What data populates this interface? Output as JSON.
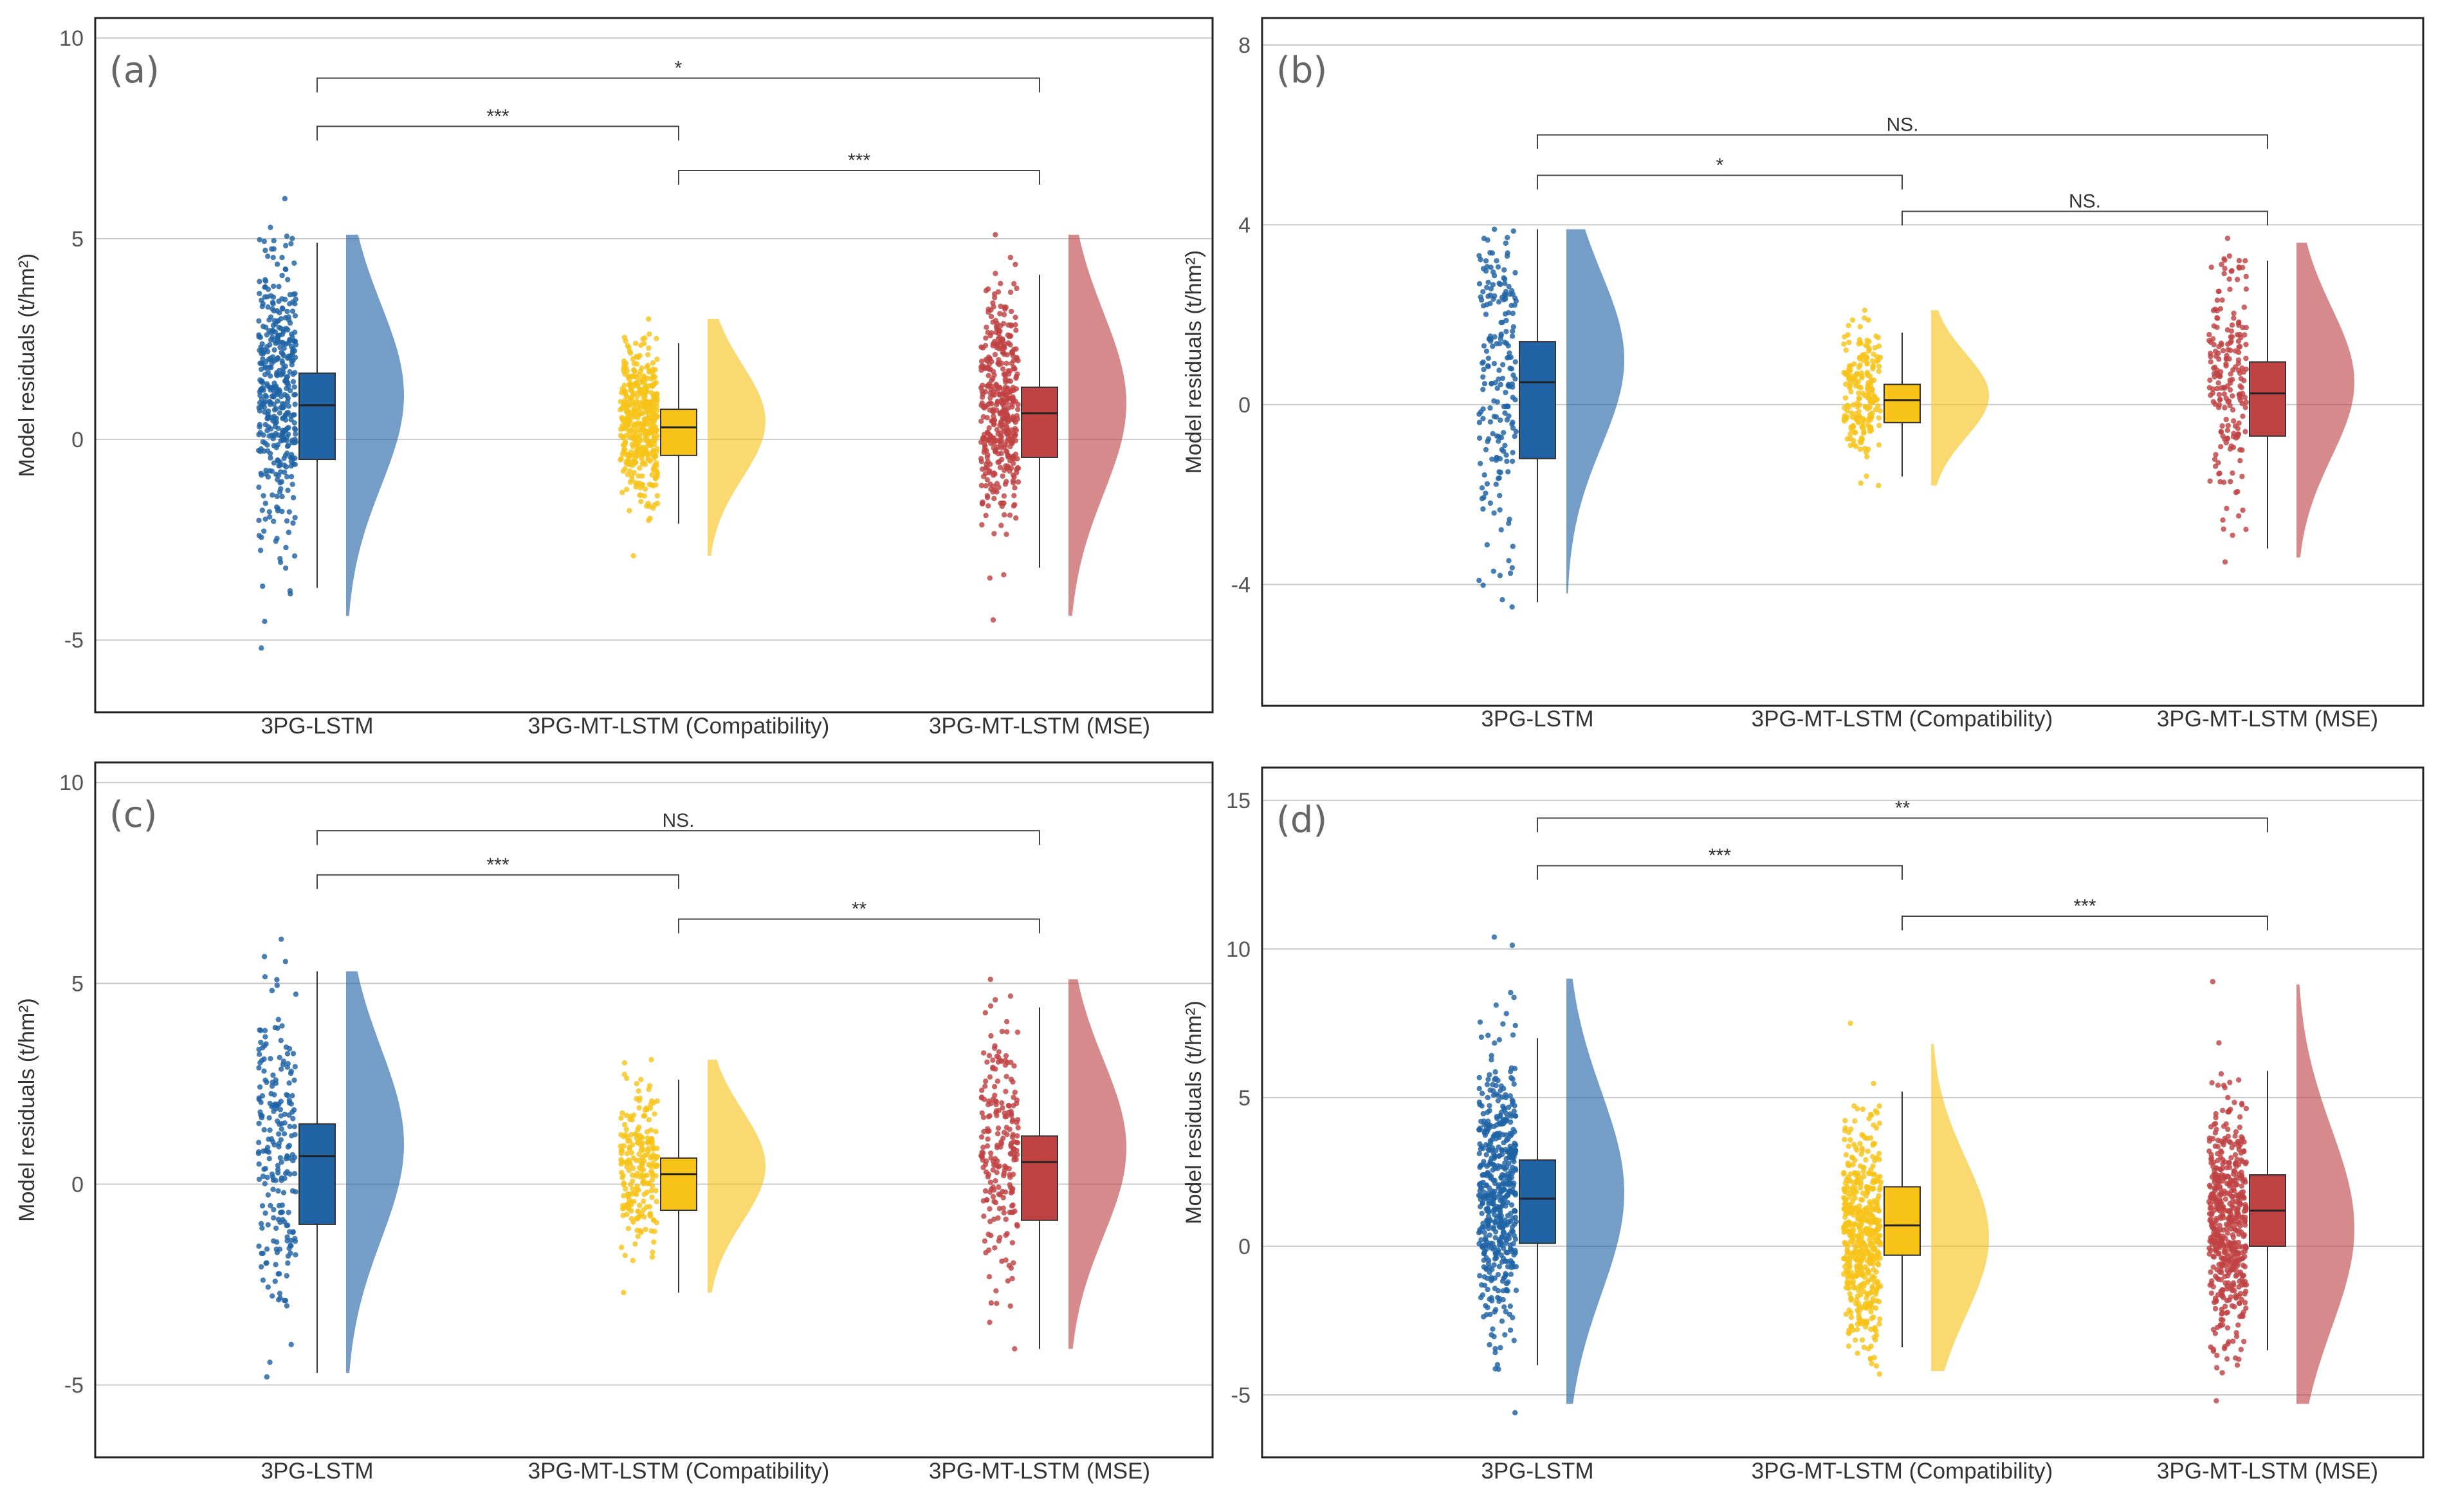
{
  "colors": {
    "3PG-LSTM": "#1f63a5",
    "3PG-MT-LSTM (Compatibility)": "#f7c319",
    "3PG-MT-LSTM (MSE)": "#bf4243"
  },
  "chart_data": [
    {
      "panel": "(a)",
      "type": "raincloud",
      "ylabel": "Model residuals (t/hm²)",
      "ylim": [
        -6.8,
        10.5
      ],
      "yticks": [
        -5,
        0,
        5,
        10
      ],
      "ytick_labels": [
        "-5",
        "0",
        "5",
        "10"
      ],
      "categories": [
        "3PG-LSTM",
        "3PG-MT-LSTM (Compatibility)",
        "3PG-MT-LSTM (MSE)"
      ],
      "series": [
        {
          "name": "3PG-LSTM",
          "q1": -0.5,
          "median": 0.85,
          "q3": 1.65,
          "whisker_low": -3.7,
          "whisker_high": 4.9,
          "min": -5.2,
          "max": 6.0,
          "density_min": -4.4,
          "density_max": 5.1,
          "mode": 1.1
        },
        {
          "name": "3PG-MT-LSTM (Compatibility)",
          "q1": -0.4,
          "median": 0.3,
          "q3": 0.75,
          "whisker_low": -2.1,
          "whisker_high": 2.4,
          "min": -2.9,
          "max": 3.0,
          "density_min": -2.9,
          "density_max": 3.0,
          "mode": 0.45
        },
        {
          "name": "3PG-MT-LSTM (MSE)",
          "q1": -0.45,
          "median": 0.65,
          "q3": 1.3,
          "whisker_low": -3.2,
          "whisker_high": 4.1,
          "min": -4.5,
          "max": 5.1,
          "density_min": -4.4,
          "density_max": 5.1,
          "mode": 0.9
        }
      ],
      "n_points": 420,
      "annotations": [
        {
          "from": 0,
          "to": 2,
          "y": 9.0,
          "label": "*"
        },
        {
          "from": 0,
          "to": 1,
          "y": 7.8,
          "label": "***"
        },
        {
          "from": 1,
          "to": 2,
          "y": 6.7,
          "label": "***"
        }
      ]
    },
    {
      "panel": "(b)",
      "type": "raincloud",
      "ylabel": "Model residuals (t/hm²)",
      "ylim": [
        -6.7,
        8.6
      ],
      "yticks": [
        -4,
        0,
        4,
        8
      ],
      "ytick_labels": [
        "-4",
        "0",
        "4",
        "8"
      ],
      "categories": [
        "3PG-LSTM",
        "3PG-MT-LSTM (Compatibility)",
        "3PG-MT-LSTM (MSE)"
      ],
      "series": [
        {
          "name": "3PG-LSTM",
          "q1": -1.2,
          "median": 0.5,
          "q3": 1.4,
          "whisker_low": -4.4,
          "whisker_high": 3.9,
          "min": -4.5,
          "max": 3.9,
          "density_min": -4.2,
          "density_max": 3.9,
          "mode": 1.0
        },
        {
          "name": "3PG-MT-LSTM (Compatibility)",
          "q1": -0.4,
          "median": 0.1,
          "q3": 0.45,
          "whisker_low": -1.6,
          "whisker_high": 1.6,
          "min": -1.8,
          "max": 2.1,
          "density_min": -1.8,
          "density_max": 2.1,
          "mode": 0.2
        },
        {
          "name": "3PG-MT-LSTM (MSE)",
          "q1": -0.7,
          "median": 0.25,
          "q3": 0.95,
          "whisker_low": -3.2,
          "whisker_high": 3.2,
          "min": -3.5,
          "max": 3.7,
          "density_min": -3.4,
          "density_max": 3.6,
          "mode": 0.5
        }
      ],
      "n_points": 200,
      "annotations": [
        {
          "from": 0,
          "to": 2,
          "y": 6.0,
          "label": "NS."
        },
        {
          "from": 0,
          "to": 1,
          "y": 5.1,
          "label": "*"
        },
        {
          "from": 1,
          "to": 2,
          "y": 4.3,
          "label": "NS."
        }
      ]
    },
    {
      "panel": "(c)",
      "type": "raincloud",
      "ylabel": "Model residuals (t/hm²)",
      "ylim": [
        -6.8,
        10.5
      ],
      "yticks": [
        -5,
        0,
        5,
        10
      ],
      "ytick_labels": [
        "-5",
        "0",
        "5",
        "10"
      ],
      "categories": [
        "3PG-LSTM",
        "3PG-MT-LSTM (Compatibility)",
        "3PG-MT-LSTM (MSE)"
      ],
      "series": [
        {
          "name": "3PG-LSTM",
          "q1": -1.0,
          "median": 0.7,
          "q3": 1.5,
          "whisker_low": -4.7,
          "whisker_high": 5.3,
          "min": -4.8,
          "max": 6.1,
          "density_min": -4.7,
          "density_max": 5.3,
          "mode": 1.0
        },
        {
          "name": "3PG-MT-LSTM (Compatibility)",
          "q1": -0.65,
          "median": 0.25,
          "q3": 0.65,
          "whisker_low": -2.7,
          "whisker_high": 2.6,
          "min": -2.7,
          "max": 3.1,
          "density_min": -2.7,
          "density_max": 3.1,
          "mode": 0.45
        },
        {
          "name": "3PG-MT-LSTM (MSE)",
          "q1": -0.9,
          "median": 0.55,
          "q3": 1.2,
          "whisker_low": -4.1,
          "whisker_high": 4.4,
          "min": -4.1,
          "max": 5.1,
          "density_min": -4.1,
          "density_max": 5.1,
          "mode": 0.9
        }
      ],
      "n_points": 220,
      "annotations": [
        {
          "from": 0,
          "to": 2,
          "y": 8.8,
          "label": "NS."
        },
        {
          "from": 0,
          "to": 1,
          "y": 7.7,
          "label": "***"
        },
        {
          "from": 1,
          "to": 2,
          "y": 6.6,
          "label": "**"
        }
      ]
    },
    {
      "panel": "(d)",
      "type": "raincloud",
      "ylabel": "Model residuals (t/hm²)",
      "ylim": [
        -7.1,
        16.1
      ],
      "yticks": [
        -5,
        0,
        5,
        10,
        15
      ],
      "ytick_labels": [
        "-5",
        "0",
        "5",
        "10",
        "15"
      ],
      "categories": [
        "3PG-LSTM",
        "3PG-MT-LSTM (Compatibility)",
        "3PG-MT-LSTM (MSE)"
      ],
      "series": [
        {
          "name": "3PG-LSTM",
          "q1": 0.1,
          "median": 1.6,
          "q3": 2.9,
          "whisker_low": -4.0,
          "whisker_high": 7.0,
          "min": -5.6,
          "max": 10.4,
          "density_min": -5.3,
          "density_max": 9.0,
          "mode": 1.8
        },
        {
          "name": "3PG-MT-LSTM (Compatibility)",
          "q1": -0.3,
          "median": 0.7,
          "q3": 2.0,
          "whisker_low": -3.4,
          "whisker_high": 5.2,
          "min": -4.3,
          "max": 7.5,
          "density_min": -4.2,
          "density_max": 6.8,
          "mode": 0.3
        },
        {
          "name": "3PG-MT-LSTM (MSE)",
          "q1": 0.0,
          "median": 1.2,
          "q3": 2.4,
          "whisker_low": -3.5,
          "whisker_high": 5.9,
          "min": -5.2,
          "max": 8.9,
          "density_min": -5.3,
          "density_max": 8.8,
          "mode": 0.6
        }
      ],
      "n_points": 520,
      "annotations": [
        {
          "from": 0,
          "to": 2,
          "y": 14.4,
          "label": "**"
        },
        {
          "from": 0,
          "to": 1,
          "y": 12.8,
          "label": "***"
        },
        {
          "from": 1,
          "to": 2,
          "y": 11.1,
          "label": "***"
        }
      ]
    }
  ]
}
